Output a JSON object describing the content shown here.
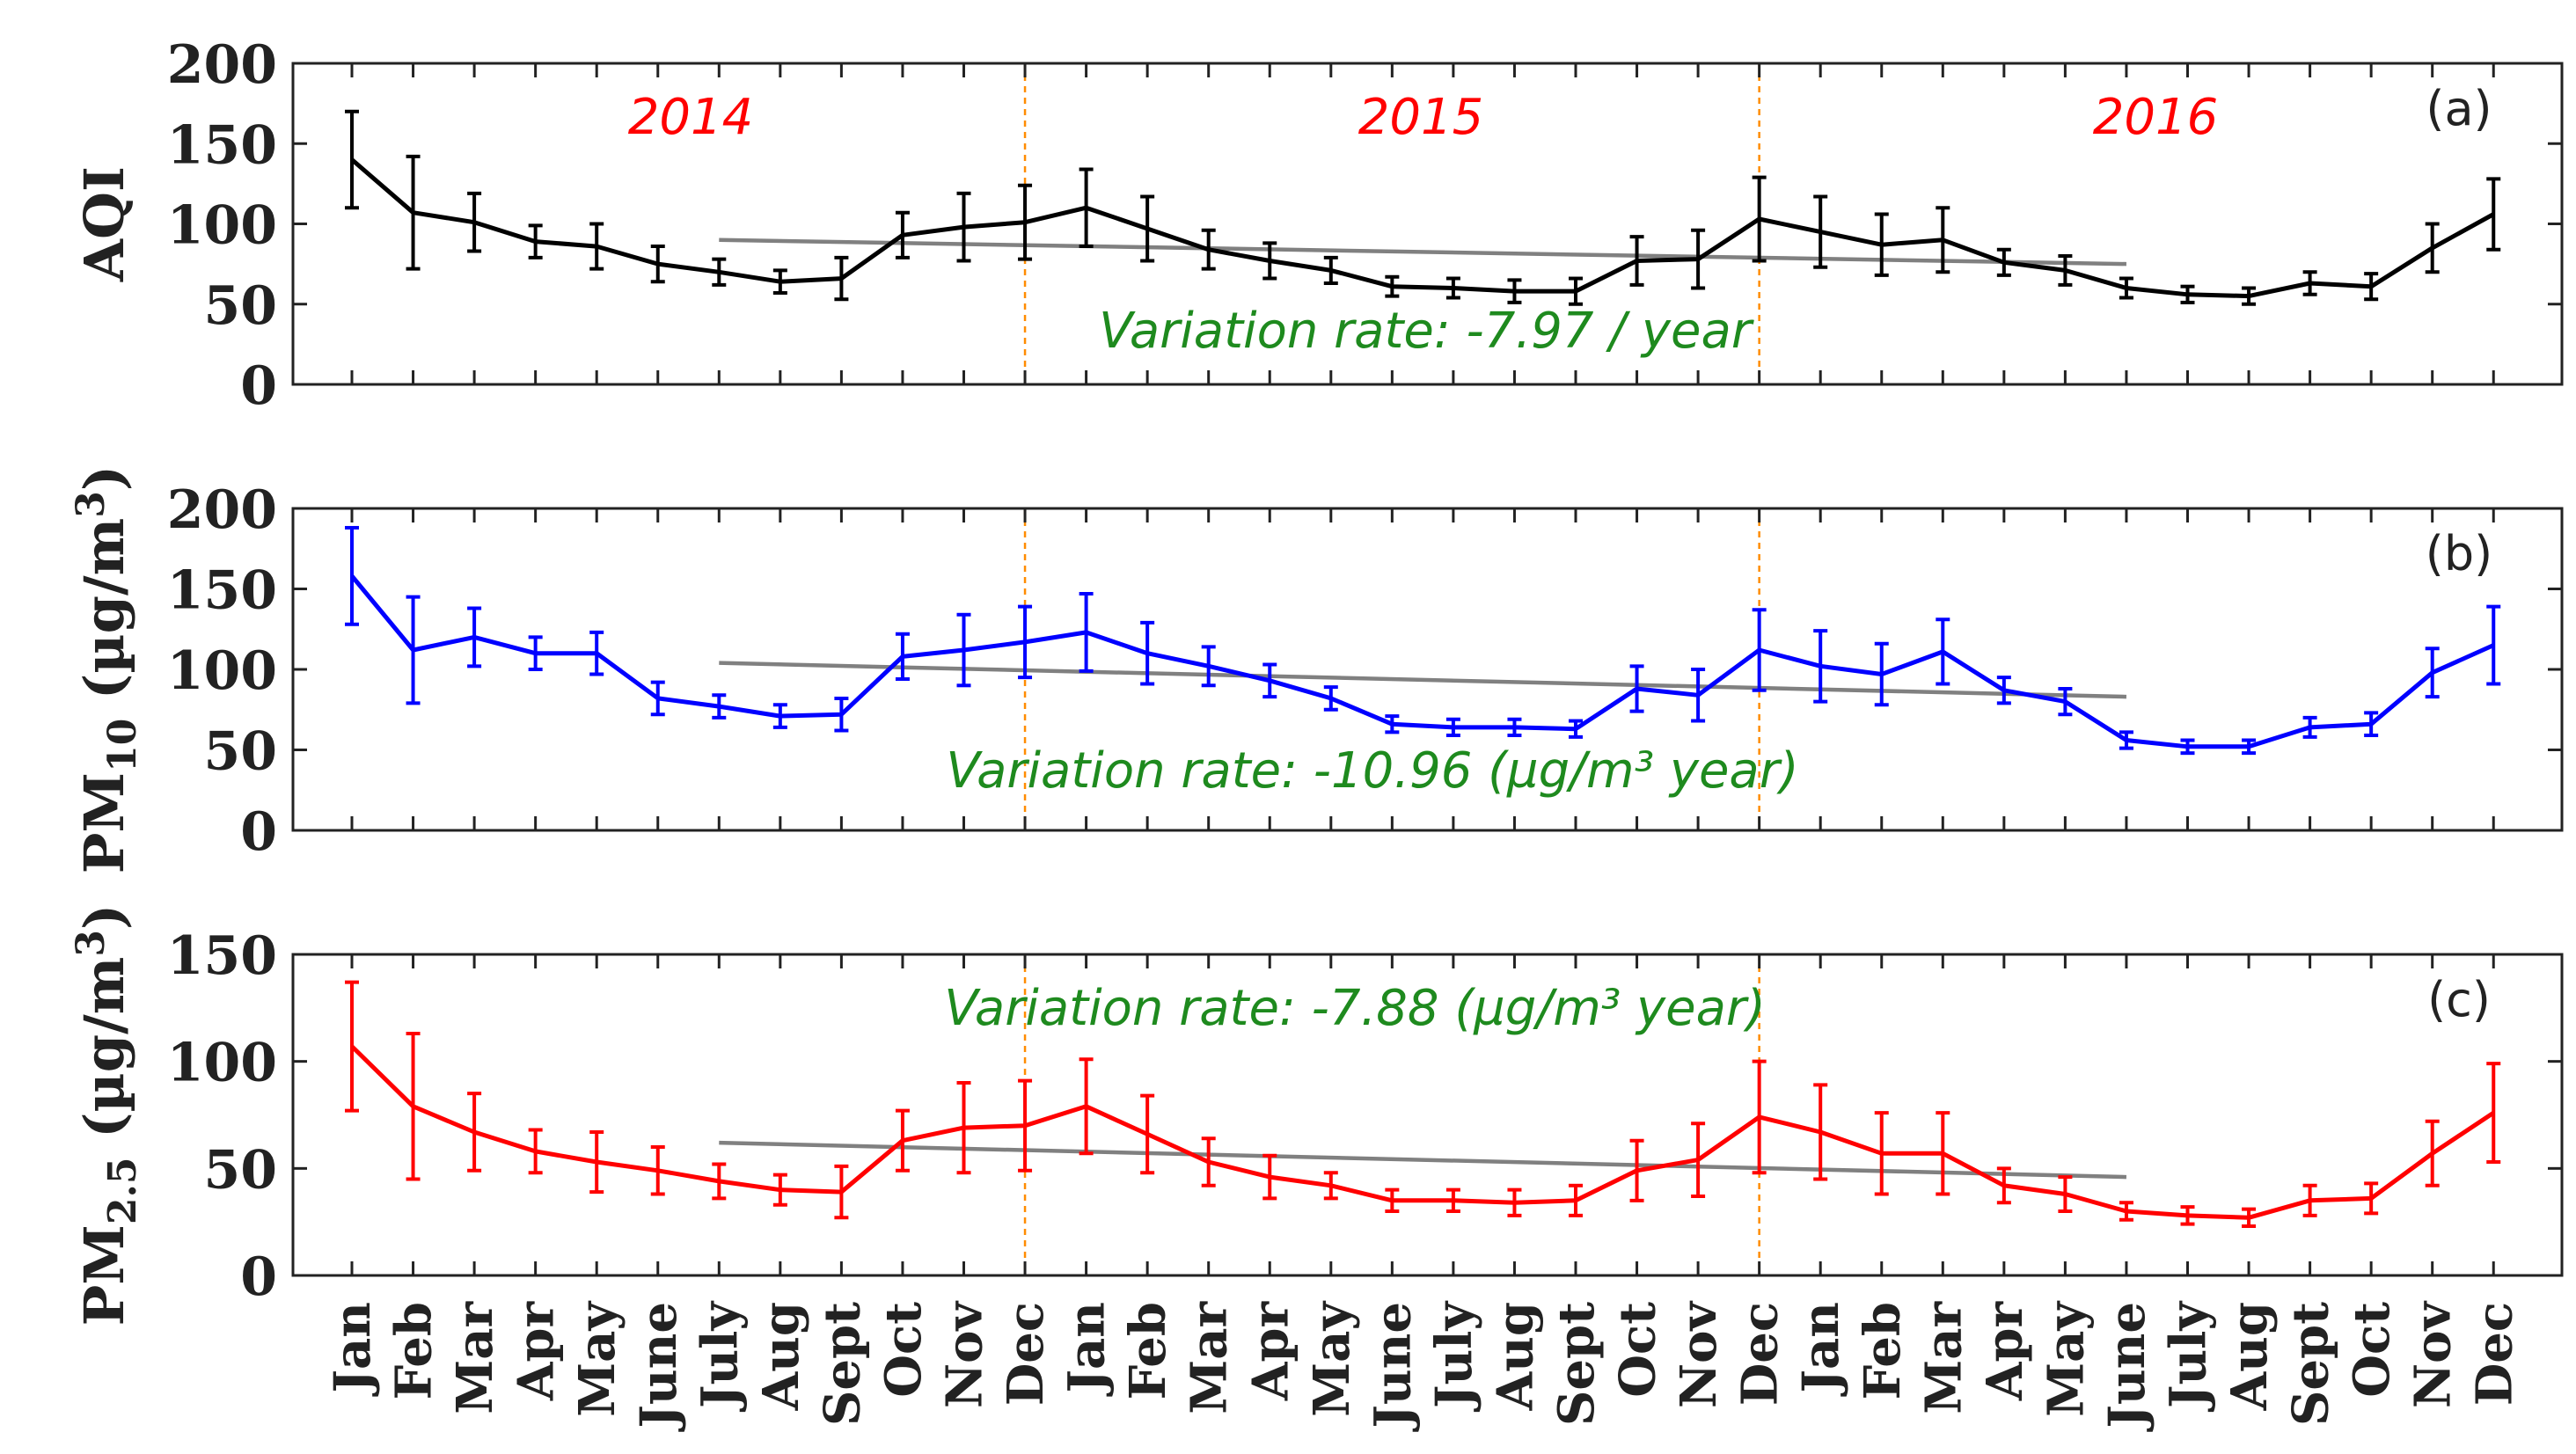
{
  "chart_data": [
    {
      "type": "line",
      "panel_label": "(a)",
      "ylabel": "AQI",
      "ylabel_sub": "",
      "ylabel_unit": "",
      "ylim": [
        0,
        200
      ],
      "yticks": [
        "0",
        "50",
        "100",
        "150",
        "200"
      ],
      "ytick_values": [
        0,
        50,
        100,
        150,
        200
      ],
      "color": "#000000",
      "values": [
        140,
        107,
        101,
        89,
        86,
        75,
        70,
        64,
        66,
        93,
        98,
        101,
        110,
        97,
        84,
        77,
        71,
        61,
        60,
        58,
        58,
        77,
        78,
        103,
        95,
        87,
        90,
        76,
        71,
        60,
        56,
        55,
        63,
        61,
        85,
        106
      ],
      "errors": [
        30,
        35,
        18,
        10,
        14,
        11,
        8,
        7,
        13,
        14,
        21,
        23,
        24,
        20,
        12,
        11,
        8,
        6,
        6,
        7,
        8,
        15,
        18,
        26,
        22,
        19,
        20,
        8,
        9,
        6,
        5,
        5,
        7,
        8,
        15,
        22
      ],
      "trend": {
        "name": "trend",
        "values": [
          90,
          75
        ],
        "color": "#808080"
      },
      "annotation": "Variation rate: -7.97 / year",
      "year_labels": [
        "2014",
        "2015",
        "2016"
      ]
    },
    {
      "type": "line",
      "panel_label": "(b)",
      "ylabel": "PM",
      "ylabel_sub": "10",
      "ylabel_unit": "(µg/m",
      "ylabel_sup": "3",
      "ylabel_close": ")",
      "ylim": [
        0,
        200
      ],
      "yticks": [
        "0",
        "50",
        "100",
        "150",
        "200"
      ],
      "ytick_values": [
        0,
        50,
        100,
        150,
        200
      ],
      "color": "#0000ff",
      "values": [
        158,
        112,
        120,
        110,
        110,
        82,
        77,
        71,
        72,
        108,
        112,
        117,
        123,
        110,
        102,
        93,
        82,
        66,
        64,
        64,
        63,
        88,
        84,
        112,
        102,
        97,
        111,
        87,
        80,
        56,
        52,
        52,
        64,
        66,
        98,
        115
      ],
      "errors": [
        30,
        33,
        18,
        10,
        13,
        10,
        7,
        7,
        10,
        14,
        22,
        22,
        24,
        19,
        12,
        10,
        7,
        5,
        5,
        5,
        5,
        14,
        16,
        25,
        22,
        19,
        20,
        8,
        8,
        5,
        4,
        4,
        6,
        7,
        15,
        24
      ],
      "trend": {
        "name": "trend",
        "values": [
          104,
          83
        ],
        "color": "#808080"
      },
      "annotation": "Variation rate: -10.96 (µg/m³ year)"
    },
    {
      "type": "line",
      "panel_label": "(c)",
      "ylabel": "PM",
      "ylabel_sub": "2.5",
      "ylabel_unit": "(µg/m",
      "ylabel_sup": "3",
      "ylabel_close": ")",
      "ylim": [
        0,
        150
      ],
      "yticks": [
        "0",
        "50",
        "100",
        "150"
      ],
      "ytick_values": [
        0,
        50,
        100,
        150
      ],
      "color": "#ff0000",
      "values": [
        107,
        79,
        67,
        58,
        53,
        49,
        44,
        40,
        39,
        63,
        69,
        70,
        79,
        66,
        53,
        46,
        42,
        35,
        35,
        34,
        35,
        49,
        54,
        74,
        67,
        57,
        57,
        42,
        38,
        30,
        28,
        27,
        35,
        36,
        57,
        76
      ],
      "errors": [
        30,
        34,
        18,
        10,
        14,
        11,
        8,
        7,
        12,
        14,
        21,
        21,
        22,
        18,
        11,
        10,
        6,
        5,
        5,
        6,
        7,
        14,
        17,
        26,
        22,
        19,
        19,
        8,
        8,
        4,
        4,
        4,
        7,
        7,
        15,
        23
      ],
      "trend": {
        "name": "trend",
        "values": [
          62,
          46
        ],
        "color": "#808080"
      },
      "annotation": "Variation rate: -7.88 (µg/m³ year)"
    }
  ],
  "x_categories": [
    "Jan",
    "Feb",
    "Mar",
    "Apr",
    "May",
    "June",
    "July",
    "Aug",
    "Sept",
    "Oct",
    "Nov",
    "Dec",
    "Jan",
    "Feb",
    "Mar",
    "Apr",
    "May",
    "June",
    "July",
    "Aug",
    "Sept",
    "Oct",
    "Nov",
    "Dec",
    "Jan",
    "Feb",
    "Mar",
    "Apr",
    "May",
    "June",
    "July",
    "Aug",
    "Sept",
    "Oct",
    "Nov",
    "Dec"
  ],
  "trend_range": {
    "start_index": 6,
    "end_index": 29
  },
  "year_dividers_after_index": [
    11,
    23
  ],
  "colors": {
    "divider": "#ff8c00",
    "trend": "#808080",
    "year_label": "#ff0000",
    "annotation": "#1e8a1e"
  }
}
